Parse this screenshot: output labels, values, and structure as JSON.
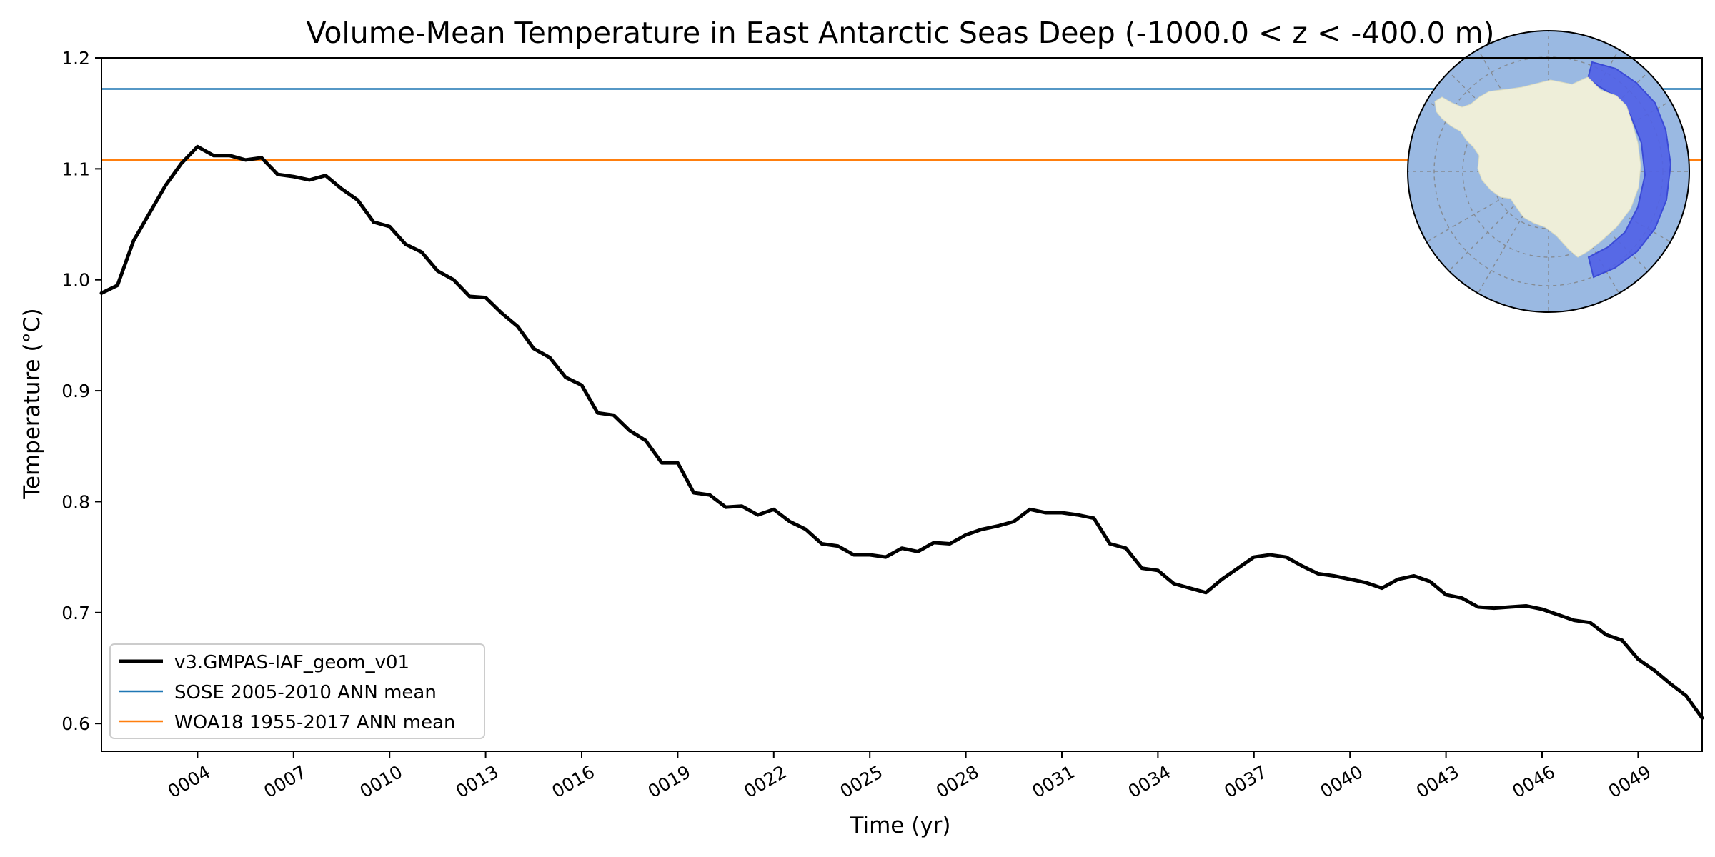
{
  "chart_data": {
    "type": "line",
    "title": "Volume-Mean Temperature in East Antarctic Seas Deep (-1000.0 < z < -400.0 m)",
    "xlabel": "Time (yr)",
    "ylabel": "Temperature (°C)",
    "xlim": [
      1.0,
      51.0
    ],
    "ylim": [
      0.575,
      1.2
    ],
    "yticks": [
      0.6,
      0.7,
      0.8,
      0.9,
      1.0,
      1.1,
      1.2
    ],
    "ytick_labels": [
      "0.6",
      "0.7",
      "0.8",
      "0.9",
      "1.0",
      "1.1",
      "1.2"
    ],
    "xticks": [
      4,
      7,
      10,
      13,
      16,
      19,
      22,
      25,
      28,
      31,
      34,
      37,
      40,
      43,
      46,
      49
    ],
    "xtick_labels": [
      "0004",
      "0007",
      "0010",
      "0013",
      "0016",
      "0019",
      "0022",
      "0025",
      "0028",
      "0031",
      "0034",
      "0037",
      "0040",
      "0043",
      "0046",
      "0049"
    ],
    "legend_position": "lower-left",
    "series": [
      {
        "name": "v3.GMPAS-IAF_geom_v01",
        "color": "#000000",
        "style": "thick-line",
        "x": [
          1.0,
          1.5,
          2.0,
          2.5,
          3.0,
          3.5,
          4.0,
          4.5,
          5.0,
          5.5,
          6.0,
          6.5,
          7.0,
          7.5,
          8.0,
          8.5,
          9.0,
          9.5,
          10.0,
          10.5,
          11.0,
          11.5,
          12.0,
          12.5,
          13.0,
          13.5,
          14.0,
          14.5,
          15.0,
          15.5,
          16.0,
          16.5,
          17.0,
          17.5,
          18.0,
          18.5,
          19.0,
          19.5,
          20.0,
          20.5,
          21.0,
          21.5,
          22.0,
          22.5,
          23.0,
          23.5,
          24.0,
          24.5,
          25.0,
          25.5,
          26.0,
          26.5,
          27.0,
          27.5,
          28.0,
          28.5,
          29.0,
          29.5,
          30.0,
          30.5,
          31.0,
          31.5,
          32.0,
          32.5,
          33.0,
          33.5,
          34.0,
          34.5,
          35.0,
          35.5,
          36.0,
          36.5,
          37.0,
          37.5,
          38.0,
          38.5,
          39.0,
          39.5,
          40.0,
          40.5,
          41.0,
          41.5,
          42.0,
          42.5,
          43.0,
          43.5,
          44.0,
          44.5,
          45.0,
          45.5,
          46.0,
          46.5,
          47.0,
          47.5,
          48.0,
          48.5,
          49.0,
          49.5,
          50.0,
          50.5,
          51.0
        ],
        "values": [
          0.988,
          0.995,
          1.035,
          1.06,
          1.085,
          1.105,
          1.12,
          1.112,
          1.112,
          1.108,
          1.11,
          1.095,
          1.093,
          1.09,
          1.094,
          1.082,
          1.072,
          1.052,
          1.048,
          1.032,
          1.025,
          1.008,
          1.0,
          0.985,
          0.984,
          0.97,
          0.958,
          0.938,
          0.93,
          0.912,
          0.905,
          0.88,
          0.878,
          0.864,
          0.855,
          0.835,
          0.835,
          0.808,
          0.806,
          0.795,
          0.796,
          0.788,
          0.793,
          0.782,
          0.775,
          0.762,
          0.76,
          0.752,
          0.752,
          0.75,
          0.758,
          0.755,
          0.763,
          0.762,
          0.77,
          0.775,
          0.778,
          0.782,
          0.793,
          0.79,
          0.79,
          0.788,
          0.785,
          0.762,
          0.758,
          0.74,
          0.738,
          0.726,
          0.722,
          0.718,
          0.73,
          0.74,
          0.75,
          0.752,
          0.75,
          0.742,
          0.735,
          0.733,
          0.73,
          0.727,
          0.722,
          0.73,
          0.733,
          0.728,
          0.716,
          0.713,
          0.705,
          0.704,
          0.705,
          0.706,
          0.703,
          0.698,
          0.693,
          0.691,
          0.68,
          0.675,
          0.658,
          0.648,
          0.636,
          0.625,
          0.605
        ]
      },
      {
        "name": "SOSE 2005-2010 ANN mean",
        "color": "#1f77b4",
        "style": "hline",
        "value": 1.172
      },
      {
        "name": "WOA18 1955-2017 ANN mean",
        "color": "#ff7f0e",
        "style": "hline",
        "value": 1.108
      }
    ],
    "inset_map": {
      "description_name": "antarctic-region-map",
      "ocean_color": "#9ab9e2",
      "land_color": "#eeeed9",
      "region_color": "#5061e7"
    }
  }
}
